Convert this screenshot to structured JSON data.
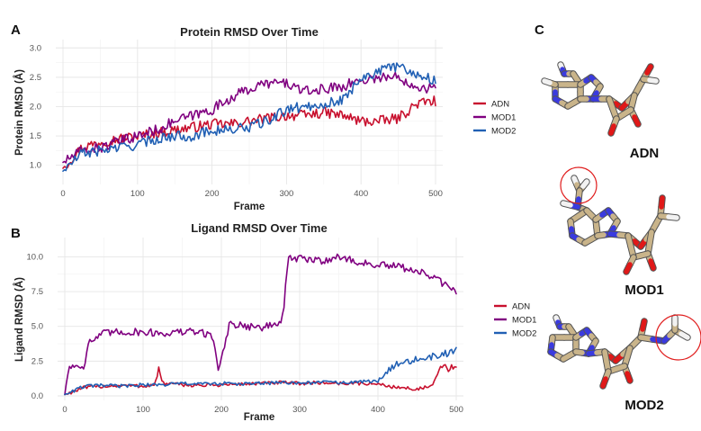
{
  "panels": {
    "a": "A",
    "b": "B",
    "c": "C"
  },
  "colors": {
    "ADN": "#c8102e",
    "MOD1": "#800080",
    "MOD2": "#2160b4",
    "highlight_circle": "#e01e1e",
    "carbon": "#c9b48a",
    "nitrogen": "#3a3adf",
    "oxygen": "#e01818",
    "hydrogen": "#f2f2f2"
  },
  "molecules": [
    {
      "label": "ADN",
      "highlighted": false
    },
    {
      "label": "MOD1",
      "highlighted": true
    },
    {
      "label": "MOD2",
      "highlighted": true
    }
  ],
  "chart_data": [
    {
      "type": "line",
      "title": "Protein RMSD Over Time",
      "xlabel": "Frame",
      "ylabel": "Protein RMSD (Å)",
      "xlim": [
        0,
        500
      ],
      "ylim": [
        0.75,
        3.05
      ],
      "xticks": [
        0,
        100,
        200,
        300,
        400,
        500
      ],
      "yticks": [
        1.0,
        1.5,
        2.0,
        2.5,
        3.0
      ],
      "ytick_labels": [
        "1.0",
        "1.5",
        "2.0",
        "2.5",
        "3.0"
      ],
      "grid": true,
      "legend_position": "right",
      "series": [
        {
          "name": "ADN",
          "color": "#c8102e",
          "x": [
            0,
            25,
            50,
            75,
            100,
            125,
            150,
            175,
            200,
            225,
            250,
            275,
            300,
            325,
            350,
            375,
            400,
            425,
            450,
            475,
            500
          ],
          "y": [
            0.95,
            1.3,
            1.4,
            1.45,
            1.5,
            1.55,
            1.6,
            1.65,
            1.7,
            1.7,
            1.75,
            1.8,
            1.85,
            1.85,
            1.9,
            1.85,
            1.75,
            1.75,
            1.8,
            2.05,
            2.1
          ]
        },
        {
          "name": "MOD1",
          "color": "#800080",
          "x": [
            0,
            25,
            50,
            75,
            100,
            125,
            150,
            175,
            200,
            225,
            250,
            275,
            300,
            325,
            350,
            375,
            400,
            425,
            450,
            475,
            500
          ],
          "y": [
            1.05,
            1.25,
            1.3,
            1.4,
            1.5,
            1.6,
            1.75,
            1.85,
            1.95,
            2.15,
            2.3,
            2.4,
            2.4,
            2.25,
            2.3,
            2.35,
            2.45,
            2.5,
            2.5,
            2.35,
            2.3
          ]
        },
        {
          "name": "MOD2",
          "color": "#2160b4",
          "x": [
            0,
            25,
            50,
            75,
            100,
            125,
            150,
            175,
            200,
            225,
            250,
            275,
            300,
            325,
            350,
            375,
            400,
            425,
            450,
            475,
            500
          ],
          "y": [
            0.9,
            1.2,
            1.25,
            1.3,
            1.35,
            1.45,
            1.5,
            1.5,
            1.6,
            1.6,
            1.65,
            1.75,
            1.95,
            2.0,
            2.05,
            2.1,
            2.5,
            2.6,
            2.7,
            2.55,
            2.45
          ]
        }
      ]
    },
    {
      "type": "line",
      "title": "Ligand RMSD Over Time",
      "xlabel": "Frame",
      "ylabel": "Ligand RMSD (Å)",
      "xlim": [
        0,
        500
      ],
      "ylim": [
        0,
        11
      ],
      "xticks": [
        0,
        100,
        200,
        300,
        400,
        500
      ],
      "yticks": [
        0.0,
        2.5,
        5.0,
        7.5,
        10.0
      ],
      "ytick_labels": [
        "0.0",
        "2.5",
        "5.0",
        "7.5",
        "10.0"
      ],
      "grid": true,
      "legend_position": "right",
      "series": [
        {
          "name": "ADN",
          "color": "#c8102e",
          "x": [
            0,
            25,
            50,
            75,
            100,
            115,
            120,
            125,
            150,
            175,
            200,
            225,
            250,
            275,
            300,
            325,
            350,
            375,
            400,
            425,
            450,
            470,
            480,
            500
          ],
          "y": [
            0.1,
            0.6,
            0.7,
            0.75,
            0.7,
            0.8,
            1.9,
            0.9,
            0.8,
            0.75,
            0.8,
            0.85,
            0.9,
            0.95,
            0.9,
            0.95,
            0.9,
            0.9,
            0.85,
            0.6,
            0.5,
            0.7,
            2.1,
            1.9
          ]
        },
        {
          "name": "MOD1",
          "color": "#800080",
          "x": [
            0,
            5,
            25,
            30,
            50,
            75,
            100,
            125,
            150,
            175,
            190,
            195,
            200,
            210,
            250,
            275,
            280,
            285,
            300,
            325,
            350,
            375,
            400,
            425,
            450,
            475,
            500
          ],
          "y": [
            0.1,
            2.1,
            2.2,
            3.8,
            4.5,
            4.6,
            4.6,
            4.5,
            4.6,
            4.6,
            4.2,
            2.0,
            2.5,
            5.2,
            4.9,
            5.2,
            6.5,
            9.8,
            9.9,
            9.7,
            10.0,
            9.6,
            9.4,
            9.3,
            9.0,
            8.4,
            7.4
          ]
        },
        {
          "name": "MOD2",
          "color": "#2160b4",
          "x": [
            0,
            25,
            50,
            75,
            100,
            125,
            150,
            175,
            200,
            225,
            250,
            275,
            300,
            325,
            350,
            375,
            400,
            415,
            425,
            450,
            475,
            500
          ],
          "y": [
            0.1,
            0.7,
            0.75,
            0.7,
            0.8,
            0.8,
            0.9,
            0.85,
            0.9,
            0.85,
            0.9,
            0.95,
            0.9,
            1.0,
            0.95,
            1.0,
            1.05,
            2.0,
            2.4,
            2.6,
            2.9,
            3.2
          ]
        }
      ]
    }
  ]
}
